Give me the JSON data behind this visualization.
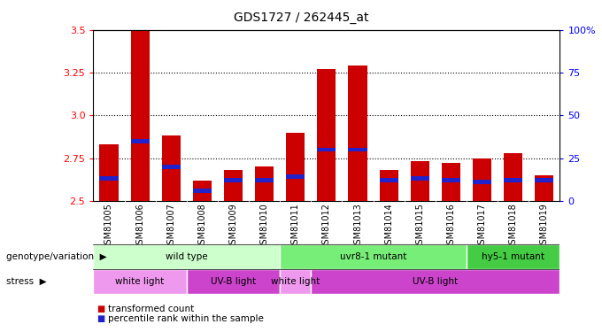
{
  "title": "GDS1727 / 262445_at",
  "samples": [
    "GSM81005",
    "GSM81006",
    "GSM81007",
    "GSM81008",
    "GSM81009",
    "GSM81010",
    "GSM81011",
    "GSM81012",
    "GSM81013",
    "GSM81014",
    "GSM81015",
    "GSM81016",
    "GSM81017",
    "GSM81018",
    "GSM81019"
  ],
  "transformed_counts": [
    2.83,
    3.5,
    2.88,
    2.62,
    2.68,
    2.7,
    2.9,
    3.27,
    3.29,
    2.68,
    2.73,
    2.72,
    2.75,
    2.78,
    2.65
  ],
  "percentile_ranks_val": [
    2.63,
    2.85,
    2.7,
    2.56,
    2.62,
    2.62,
    2.64,
    2.8,
    2.8,
    2.62,
    2.63,
    2.62,
    2.61,
    2.62,
    2.62
  ],
  "ymin": 2.5,
  "ymax": 3.5,
  "yticks_left": [
    2.5,
    2.75,
    3.0,
    3.25,
    3.5
  ],
  "yticks_right": [
    0,
    25,
    50,
    75,
    100
  ],
  "bar_color": "#cc0000",
  "percentile_color": "#2222cc",
  "bar_width": 0.6,
  "geno_groups": [
    {
      "label": "wild type",
      "start": 0,
      "end": 6,
      "color": "#ccffcc"
    },
    {
      "label": "uvr8-1 mutant",
      "start": 6,
      "end": 12,
      "color": "#77ee77"
    },
    {
      "label": "hy5-1 mutant",
      "start": 12,
      "end": 15,
      "color": "#44cc44"
    }
  ],
  "stress_groups": [
    {
      "label": "white light",
      "start": 0,
      "end": 3,
      "color": "#ee88ee"
    },
    {
      "label": "UV-B light",
      "start": 3,
      "end": 6,
      "color": "#cc44cc"
    },
    {
      "label": "white light",
      "start": 6,
      "end": 7,
      "color": "#ee88ee"
    },
    {
      "label": "UV-B light",
      "start": 7,
      "end": 15,
      "color": "#ee88ee"
    }
  ],
  "grid_lines": [
    2.75,
    3.0,
    3.25
  ],
  "xlabel_bg": "#cccccc"
}
